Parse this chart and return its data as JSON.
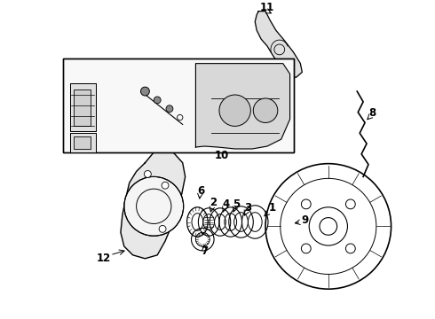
{
  "background_color": "#ffffff",
  "line_color": "#000000",
  "fig_width": 4.9,
  "fig_height": 3.6,
  "dpi": 100
}
